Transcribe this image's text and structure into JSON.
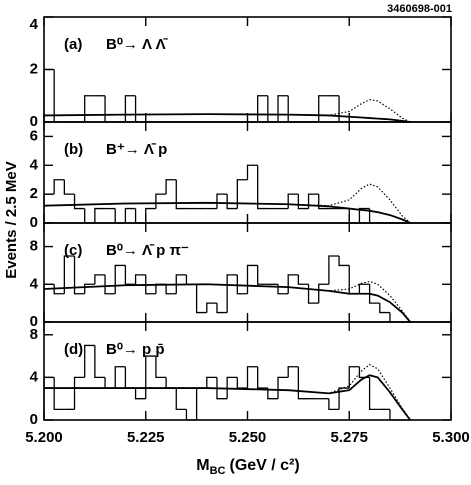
{
  "figure_id": "3460698-001",
  "ylabel": "Events / 2.5 MeV",
  "xlabel": {
    "main": "M",
    "sub": "BC",
    "rest": "(GeV / c²)"
  },
  "chart_data": [
    {
      "type": "histogram",
      "panel": "(a)",
      "title": "B⁰→ Λ Λ̄",
      "bins": [
        5.2,
        5.2025,
        5.205,
        5.2075,
        5.21,
        5.2125,
        5.215,
        5.2175,
        5.22,
        5.2225,
        5.225,
        5.2275,
        5.23,
        5.2325,
        5.235,
        5.2375,
        5.24,
        5.2425,
        5.245,
        5.2475,
        5.25,
        5.2525,
        5.255,
        5.2575,
        5.26,
        5.2625,
        5.265,
        5.2675,
        5.27,
        5.2725,
        5.275,
        5.2775,
        5.28,
        5.2825,
        5.285,
        5.2875,
        5.29
      ],
      "counts": [
        2,
        0,
        0,
        0,
        1,
        1,
        0,
        0,
        1,
        0,
        0,
        0,
        0,
        0,
        0,
        0,
        0,
        0,
        0,
        0,
        0,
        1,
        0,
        1,
        0,
        0,
        0,
        1,
        1,
        0,
        0,
        0,
        0,
        0,
        0,
        0
      ],
      "lines": [
        {
          "style": "solid",
          "x": [
            5.2,
            5.22,
            5.24,
            5.26,
            5.27,
            5.275,
            5.278,
            5.28,
            5.282,
            5.285,
            5.288,
            5.29
          ],
          "values": [
            0.25,
            0.28,
            0.3,
            0.28,
            0.25,
            0.2,
            0.17,
            0.15,
            0.13,
            0.1,
            0.04,
            0
          ]
        },
        {
          "style": "dotted",
          "x": [
            5.2,
            5.22,
            5.24,
            5.26,
            5.27,
            5.275,
            5.278,
            5.28,
            5.282,
            5.285,
            5.288,
            5.29
          ],
          "values": [
            0.25,
            0.28,
            0.3,
            0.28,
            0.26,
            0.4,
            0.7,
            0.85,
            0.8,
            0.5,
            0.15,
            0
          ]
        }
      ],
      "xlim": [
        5.2,
        5.3
      ],
      "ylim": [
        0,
        4
      ],
      "yticks": [
        0,
        2,
        4
      ],
      "color": "#000000"
    },
    {
      "type": "histogram",
      "panel": "(b)",
      "title": "B⁺→ Λ̄ p",
      "bins": [
        5.2,
        5.2025,
        5.205,
        5.2075,
        5.21,
        5.2125,
        5.215,
        5.2175,
        5.22,
        5.2225,
        5.225,
        5.2275,
        5.23,
        5.2325,
        5.235,
        5.2375,
        5.24,
        5.2425,
        5.245,
        5.2475,
        5.25,
        5.2525,
        5.255,
        5.2575,
        5.26,
        5.2625,
        5.265,
        5.2675,
        5.27,
        5.2725,
        5.275,
        5.2775,
        5.28,
        5.2825,
        5.285,
        5.2875,
        5.29
      ],
      "counts": [
        2,
        3,
        2,
        1,
        0,
        1,
        1,
        0,
        1,
        0,
        1,
        2,
        3,
        1,
        1,
        1,
        1,
        2,
        1,
        3,
        4,
        1,
        1,
        1,
        2,
        1,
        2,
        1,
        1,
        1,
        0,
        1,
        0,
        0,
        0,
        0
      ],
      "lines": [
        {
          "style": "solid",
          "x": [
            5.2,
            5.22,
            5.24,
            5.26,
            5.27,
            5.275,
            5.278,
            5.28,
            5.282,
            5.285,
            5.288,
            5.29
          ],
          "values": [
            1.2,
            1.35,
            1.4,
            1.3,
            1.15,
            1.0,
            0.9,
            0.85,
            0.75,
            0.55,
            0.25,
            0
          ]
        },
        {
          "style": "dotted",
          "x": [
            5.2,
            5.22,
            5.24,
            5.26,
            5.27,
            5.275,
            5.278,
            5.28,
            5.282,
            5.285,
            5.288,
            5.29
          ],
          "values": [
            1.2,
            1.35,
            1.4,
            1.3,
            1.2,
            1.6,
            2.4,
            2.7,
            2.5,
            1.6,
            0.5,
            0
          ]
        }
      ],
      "xlim": [
        5.2,
        5.3
      ],
      "ylim": [
        0,
        7
      ],
      "yticks": [
        0,
        2,
        4,
        6
      ],
      "color": "#000000"
    },
    {
      "type": "histogram",
      "panel": "(c)",
      "title": "B⁰→ Λ̄ p π⁻",
      "bins": [
        5.2,
        5.2025,
        5.205,
        5.2075,
        5.21,
        5.2125,
        5.215,
        5.2175,
        5.22,
        5.2225,
        5.225,
        5.2275,
        5.23,
        5.2325,
        5.235,
        5.2375,
        5.24,
        5.2425,
        5.245,
        5.2475,
        5.25,
        5.2525,
        5.255,
        5.2575,
        5.26,
        5.2625,
        5.265,
        5.2675,
        5.27,
        5.2725,
        5.275,
        5.2775,
        5.28,
        5.2825,
        5.285,
        5.2875,
        5.29
      ],
      "counts": [
        4,
        3,
        7,
        3,
        4,
        5,
        3,
        6,
        4,
        5,
        3,
        4,
        3,
        5,
        4,
        1,
        2,
        1,
        5,
        3,
        6,
        4,
        4,
        3,
        5,
        4,
        2,
        4,
        7,
        6,
        3,
        4,
        2,
        1,
        0,
        0
      ],
      "lines": [
        {
          "style": "solid",
          "x": [
            5.2,
            5.22,
            5.24,
            5.26,
            5.27,
            5.275,
            5.278,
            5.28,
            5.282,
            5.285,
            5.288,
            5.29
          ],
          "values": [
            3.5,
            3.9,
            4.0,
            3.7,
            3.3,
            3.0,
            3.0,
            3.0,
            2.8,
            2.1,
            1.0,
            0
          ]
        },
        {
          "style": "dotted",
          "x": [
            5.2,
            5.22,
            5.24,
            5.26,
            5.27,
            5.275,
            5.278,
            5.28,
            5.282,
            5.285,
            5.288,
            5.29
          ],
          "values": [
            3.5,
            3.9,
            4.0,
            3.7,
            3.3,
            3.5,
            4.1,
            4.3,
            4.0,
            2.8,
            1.2,
            0
          ]
        }
      ],
      "xlim": [
        5.2,
        5.3
      ],
      "ylim": [
        0,
        10.5
      ],
      "yticks": [
        0,
        4,
        8
      ],
      "color": "#000000"
    },
    {
      "type": "histogram",
      "panel": "(d)",
      "title": "B⁰→ p p̄",
      "bins": [
        5.2,
        5.2025,
        5.205,
        5.2075,
        5.21,
        5.2125,
        5.215,
        5.2175,
        5.22,
        5.2225,
        5.225,
        5.2275,
        5.23,
        5.2325,
        5.235,
        5.2375,
        5.24,
        5.2425,
        5.245,
        5.2475,
        5.25,
        5.2525,
        5.255,
        5.2575,
        5.26,
        5.2625,
        5.265,
        5.2675,
        5.27,
        5.2725,
        5.275,
        5.2775,
        5.28,
        5.2825,
        5.285,
        5.2875,
        5.29
      ],
      "counts": [
        4,
        1,
        1,
        4,
        7,
        4,
        3,
        5,
        3,
        2,
        6,
        4,
        3,
        1,
        0,
        3,
        4,
        2,
        4,
        3,
        5,
        3,
        2,
        4,
        5,
        2,
        2,
        2,
        1,
        3,
        5,
        4,
        1,
        1,
        0,
        0
      ],
      "lines": [
        {
          "style": "solid",
          "x": [
            5.2,
            5.22,
            5.24,
            5.26,
            5.27,
            5.275,
            5.278,
            5.28,
            5.282,
            5.285,
            5.288,
            5.29
          ],
          "values": [
            3.0,
            3.0,
            3.0,
            2.8,
            2.5,
            2.8,
            3.8,
            4.2,
            4.0,
            2.6,
            1.0,
            0
          ]
        },
        {
          "style": "dotted",
          "x": [
            5.2,
            5.22,
            5.24,
            5.26,
            5.27,
            5.275,
            5.278,
            5.28,
            5.282,
            5.285,
            5.288,
            5.29
          ],
          "values": [
            3.0,
            3.0,
            3.0,
            2.8,
            2.5,
            3.2,
            4.6,
            5.2,
            4.8,
            3.0,
            1.1,
            0
          ]
        }
      ],
      "xlim": [
        5.2,
        5.3
      ],
      "ylim": [
        0,
        9.2
      ],
      "yticks": [
        0,
        4,
        8
      ],
      "color": "#000000",
      "xticks": [
        {
          "value": 5.2,
          "label": "5.200"
        },
        {
          "value": 5.225,
          "label": "5.225"
        },
        {
          "value": 5.25,
          "label": "5.250"
        },
        {
          "value": 5.275,
          "label": "5.275"
        },
        {
          "value": 5.3,
          "label": "5.300"
        }
      ]
    }
  ]
}
